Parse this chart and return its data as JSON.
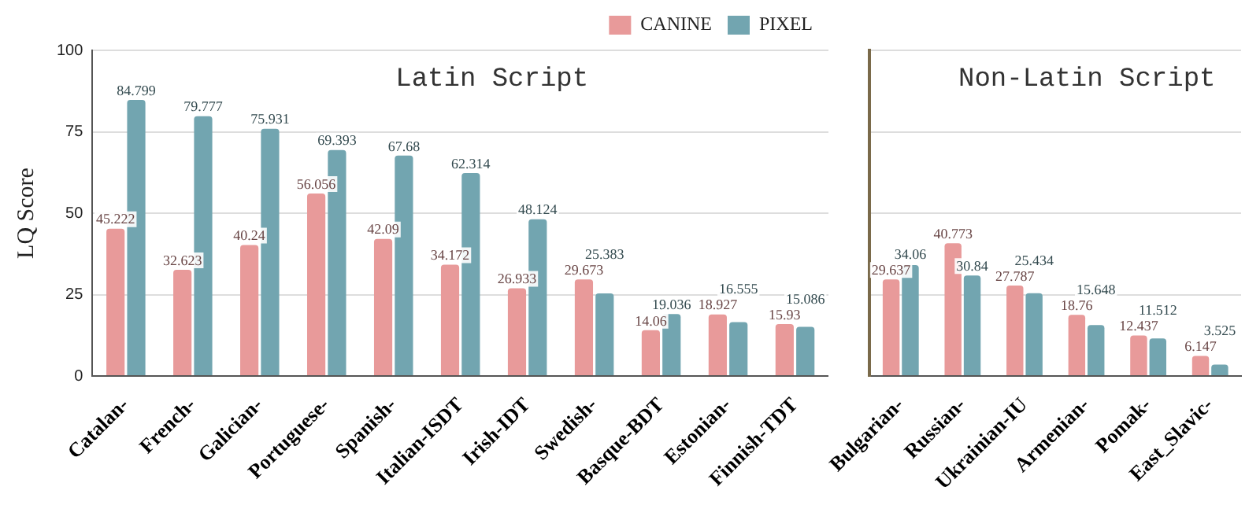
{
  "chart_data": [
    {
      "type": "bar",
      "ylabel": "LQ Score",
      "categories": [
        "Catalan-",
        "French-",
        "Galician-",
        "Portuguese-",
        "Spanish-",
        "Italian-ISDT",
        "Irish-IDT",
        "Swedish-",
        "Basque-BDT",
        "Estonian-",
        "Finnish-TDT"
      ],
      "series": [
        {
          "name": "CANINE",
          "color": "#e89a9a",
          "values": [
            45.222,
            32.623,
            40.24,
            56.056,
            42.09,
            34.172,
            26.933,
            29.673,
            14.06,
            18.927,
            15.93
          ]
        },
        {
          "name": "PIXEL",
          "color": "#72a5b0",
          "values": [
            84.799,
            79.777,
            75.931,
            69.393,
            67.68,
            62.314,
            48.124,
            25.383,
            19.036,
            16.555,
            15.086
          ]
        }
      ],
      "ylim": [
        0,
        100
      ],
      "yticks": [
        0,
        25,
        50,
        75,
        100
      ],
      "grid": "y",
      "legend": "top",
      "data_labels": true,
      "annotations": [
        "Latin Script"
      ]
    },
    {
      "type": "bar",
      "categories": [
        "Bulgarian-",
        "Russian-",
        "Ukrainian-IU",
        "Armenian-",
        "Pomak-",
        "East_Slavic-"
      ],
      "series": [
        {
          "color": "#e89a9a",
          "values": [
            29.637,
            40.773,
            27.787,
            18.76,
            12.437,
            6.147
          ]
        },
        {
          "color": "#72a5b0",
          "values": [
            34.06,
            30.84,
            25.434,
            15.648,
            11.512,
            3.525
          ]
        }
      ],
      "ylim": [
        0,
        100
      ],
      "yticks": [
        0,
        25,
        50,
        75,
        100
      ],
      "grid": "y",
      "tick_labels": "x",
      "data_labels": true,
      "annotations": [
        "Non-Latin Script"
      ]
    }
  ]
}
